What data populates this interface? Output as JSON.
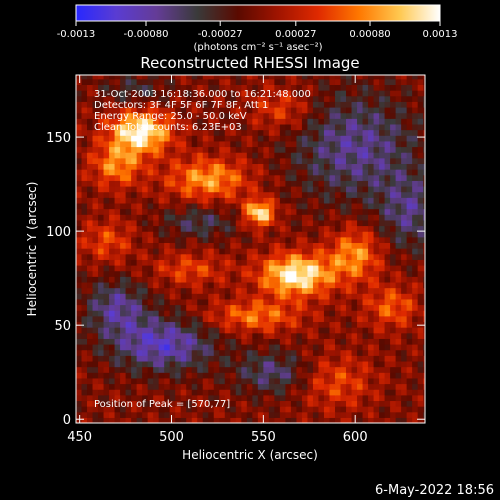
{
  "chart_data": {
    "type": "heatmap",
    "title": "Reconstructed RHESSI Image",
    "xlabel": "Heliocentric X (arcsec)",
    "ylabel": "Heliocentric Y (arcsec)",
    "xlim": [
      448,
      638
    ],
    "ylim": [
      -2,
      183
    ],
    "xticks": [
      450,
      500,
      550,
      600
    ],
    "yticks": [
      0,
      50,
      100,
      150
    ],
    "colorbar": {
      "range": [
        -0.0013,
        0.0013
      ],
      "tick_values": [
        -0.0013,
        -0.0008,
        -0.00027,
        0.00027,
        0.0008,
        0.0013
      ],
      "tick_labels": [
        "-0.0013",
        "-0.00080",
        "-0.00027",
        "0.00027",
        "0.00080",
        "0.0013"
      ],
      "units_label": "(photons cm⁻² s⁻¹ asec⁻²)",
      "stops": [
        "#2828ff",
        "#5a3cd2",
        "#643c96",
        "#3a3a3a",
        "#5a0a00",
        "#a01400",
        "#e02a00",
        "#ff7800",
        "#ffc850",
        "#ffffff"
      ]
    },
    "annotations": [
      "31-Oct-2003 16:18:36.000 to 16:21:48.000",
      "Detectors: 3F 4F 5F 6F 7F 8F, Att 1",
      "Energy Range: 25.0 - 50.0 keV",
      "Clean     Total counts: 6.23E+03"
    ],
    "peak_label": "Position of Peak = [570,77]",
    "peak": [
      570,
      77
    ],
    "grid": false,
    "sources": [
      {
        "x": 568,
        "y": 77,
        "sx": 14,
        "sy": 8,
        "amp": 0.0013
      },
      {
        "x": 483,
        "y": 153,
        "sx": 12,
        "sy": 8,
        "amp": 0.0013
      },
      {
        "x": 548,
        "y": 110,
        "sx": 6,
        "sy": 5,
        "amp": 0.0012
      },
      {
        "x": 520,
        "y": 128,
        "sx": 16,
        "sy": 8,
        "amp": 0.00085
      },
      {
        "x": 600,
        "y": 88,
        "sx": 10,
        "sy": 10,
        "amp": 0.0008
      },
      {
        "x": 470,
        "y": 135,
        "sx": 10,
        "sy": 8,
        "amp": 0.00075
      },
      {
        "x": 545,
        "y": 55,
        "sx": 18,
        "sy": 6,
        "amp": 0.0007
      },
      {
        "x": 620,
        "y": 60,
        "sx": 10,
        "sy": 8,
        "amp": 0.0006
      },
      {
        "x": 510,
        "y": 80,
        "sx": 14,
        "sy": 6,
        "amp": 0.0005
      },
      {
        "x": 590,
        "y": 20,
        "sx": 14,
        "sy": 10,
        "amp": 0.0005
      },
      {
        "x": 465,
        "y": 95,
        "sx": 10,
        "sy": 8,
        "amp": 0.0005
      },
      {
        "x": 560,
        "y": 165,
        "sx": 12,
        "sy": 8,
        "amp": 0.0005
      },
      {
        "x": 495,
        "y": 40,
        "sx": 20,
        "sy": 10,
        "amp": -0.0009
      },
      {
        "x": 470,
        "y": 60,
        "sx": 12,
        "sy": 10,
        "amp": -0.0007
      },
      {
        "x": 600,
        "y": 145,
        "sx": 24,
        "sy": 20,
        "amp": -0.0007
      },
      {
        "x": 630,
        "y": 110,
        "sx": 12,
        "sy": 14,
        "amp": -0.0006
      },
      {
        "x": 555,
        "y": 25,
        "sx": 14,
        "sy": 8,
        "amp": -0.0006
      },
      {
        "x": 515,
        "y": 105,
        "sx": 14,
        "sy": 6,
        "amp": -0.0005
      },
      {
        "x": 480,
        "y": 175,
        "sx": 12,
        "sy": 6,
        "amp": -0.0004
      }
    ]
  },
  "footer": {
    "date_stamp": "6-May-2022 18:56"
  }
}
